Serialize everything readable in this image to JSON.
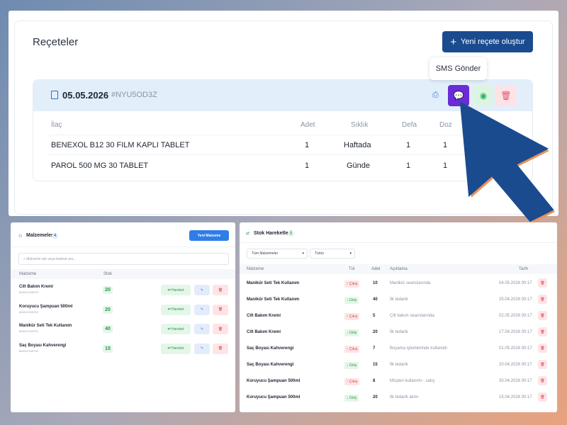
{
  "header": {
    "title": "Reçeteler",
    "new_button": "Yeni reçete oluştur",
    "tooltip": "SMS Gönder"
  },
  "prescription": {
    "date": "05.05.2026",
    "code": "#NYU5OD3Z",
    "columns": [
      "İlaç",
      "Adet",
      "Sıklık",
      "Defa",
      "Doz"
    ],
    "rows": [
      {
        "drug": "BENEXOL B12 30 FILM KAPLI TABLET",
        "qty": "1",
        "freq": "Haftada",
        "times": "1",
        "dose": "1"
      },
      {
        "drug": "PAROL 500 MG 30 TABLET",
        "qty": "1",
        "freq": "Günde",
        "times": "1",
        "dose": "1"
      }
    ]
  },
  "materials": {
    "title": "Malzemeler",
    "count": "4",
    "new_button": "Yeni Malzeme",
    "search_placeholder": "Malzeme adı veya barkod ara...",
    "columns": [
      "Malzeme",
      "Stok"
    ],
    "move_label": "Hareket",
    "items": [
      {
        "name": "Cilt Bakım Kremi",
        "barcode": "869012345678",
        "stock": "20"
      },
      {
        "name": "Koruyucu Şampuan 500ml",
        "barcode": "869012345789",
        "stock": "20"
      },
      {
        "name": "Manikür Seti Tek Kullanım",
        "barcode": "869012345790",
        "stock": "40"
      },
      {
        "name": "Saç Boyası Kahverengi",
        "barcode": "869012345790",
        "stock": "15"
      }
    ]
  },
  "movements": {
    "title": "Stok Hareketleri",
    "count": "8",
    "filter1": "Tüm Malzemeler",
    "filter2": "Tümü",
    "columns": [
      "Malzeme",
      "Tür",
      "Adet",
      "Açıklama",
      "Tarih"
    ],
    "rows": [
      {
        "name": "Manikür Seti Tek Kullanım",
        "type": "Çıkış",
        "dir": "out",
        "qty": "10",
        "desc": "Manikür seanslarında",
        "date": "04.05.2026 00:17"
      },
      {
        "name": "Manikür Seti Tek Kullanım",
        "type": "Giriş",
        "dir": "in",
        "qty": "40",
        "desc": "İlk tedarik",
        "date": "25.04.2026 00:17"
      },
      {
        "name": "Cilt Bakım Kremi",
        "type": "Çıkış",
        "dir": "out",
        "qty": "5",
        "desc": "Cilt bakım seanslarında",
        "date": "02.05.2026 00:17"
      },
      {
        "name": "Cilt Bakım Kremi",
        "type": "Giriş",
        "dir": "in",
        "qty": "20",
        "desc": "İlk tedarik",
        "date": "17.04.2026 00:17"
      },
      {
        "name": "Saç Boyası Kahverengi",
        "type": "Çıkış",
        "dir": "out",
        "qty": "7",
        "desc": "Boyama işlemlerinde kullanıldı",
        "date": "01.05.2026 00:17"
      },
      {
        "name": "Saç Boyası Kahverengi",
        "type": "Giriş",
        "dir": "in",
        "qty": "15",
        "desc": "İlk tedarik",
        "date": "20.04.2026 00:17"
      },
      {
        "name": "Koruyucu Şampuan 500ml",
        "type": "Çıkış",
        "dir": "out",
        "qty": "8",
        "desc": "Müşteri kullanımı - satış",
        "date": "30.04.2026 00:17"
      },
      {
        "name": "Koruyucu Şampuan 500ml",
        "type": "Giriş",
        "dir": "in",
        "qty": "20",
        "desc": "İlk tedarik alımı",
        "date": "15.04.2026 00:17"
      }
    ]
  },
  "colors": {
    "primary": "#1b4b8f",
    "sms": "#6a2cd8",
    "whatsapp": "#2fb35a",
    "danger": "#e0576c",
    "arrow": "#1b4b8f"
  }
}
